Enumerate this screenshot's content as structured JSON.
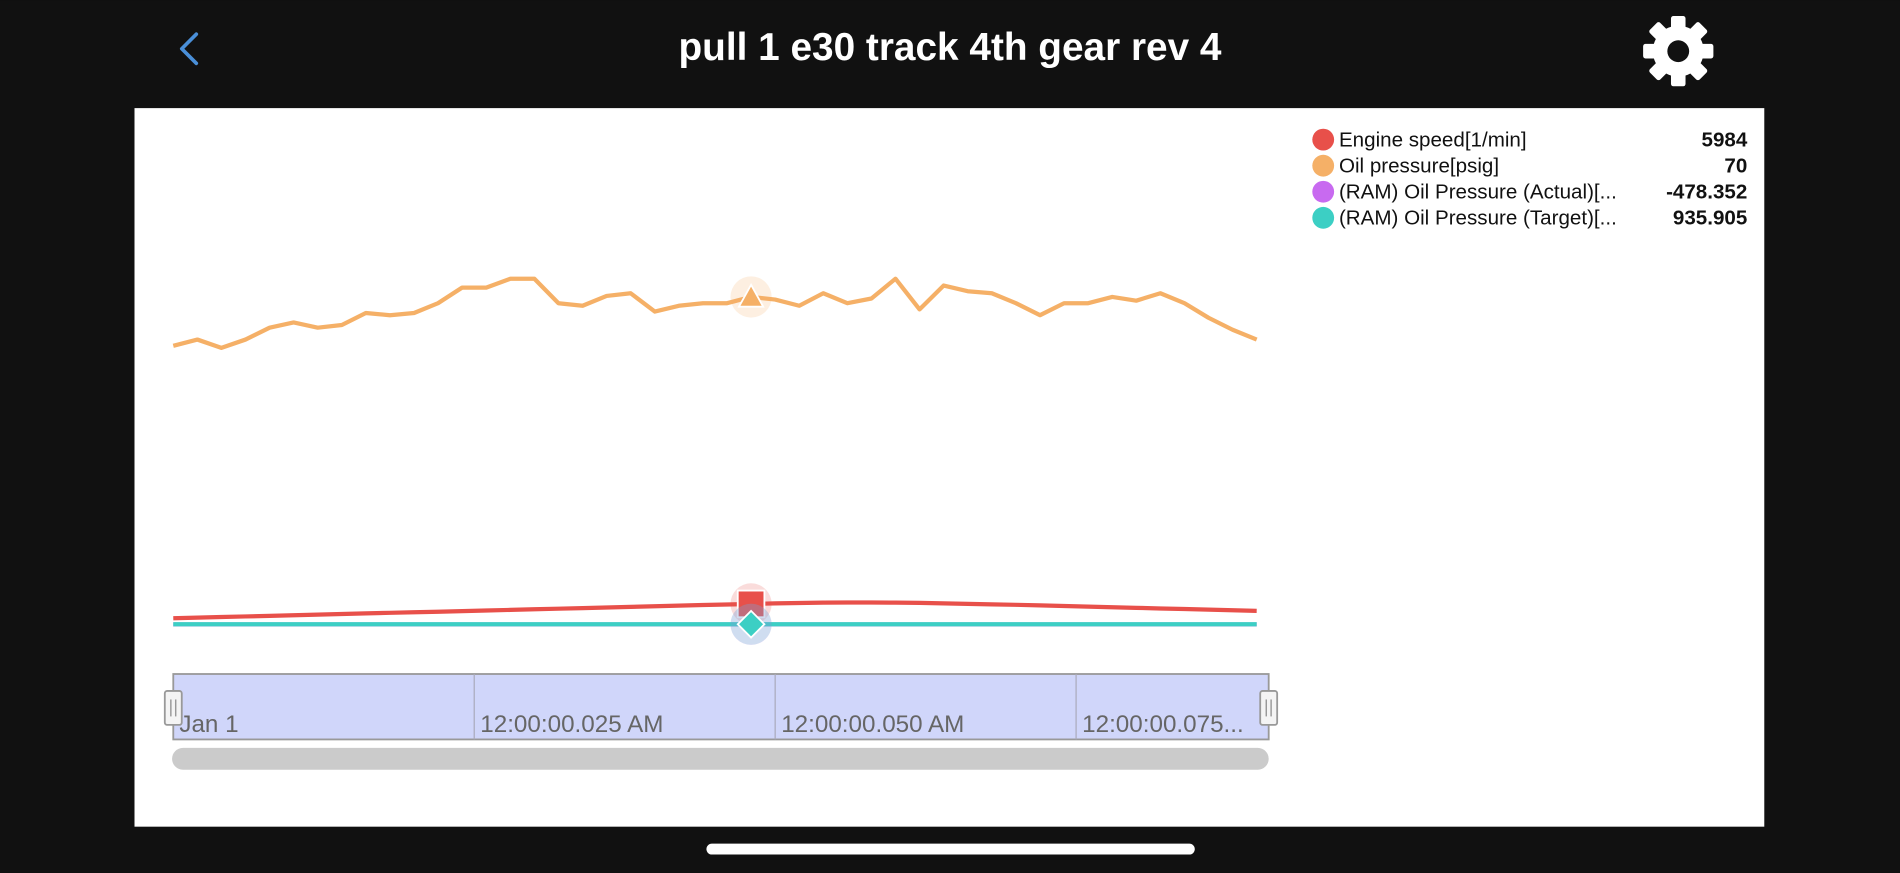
{
  "header": {
    "title": "pull 1 e30 track 4th gear rev 4"
  },
  "chart_data": {
    "type": "line",
    "x": [
      0,
      2,
      4,
      6,
      8,
      10,
      12,
      14,
      16,
      18,
      20,
      22,
      24,
      26,
      28,
      30,
      32,
      34,
      36,
      38,
      40,
      42,
      44,
      46,
      48,
      50,
      52,
      54,
      56,
      58,
      60,
      62,
      64,
      66,
      68,
      70,
      72,
      74,
      76,
      78,
      80,
      82,
      84,
      86,
      88,
      90
    ],
    "xlim": [
      0,
      91
    ],
    "xticks": [
      {
        "value": 0,
        "label": "Jan 1"
      },
      {
        "value": 25,
        "label": "12:00:00.025 AM"
      },
      {
        "value": 50,
        "label": "12:00:00.050 AM"
      },
      {
        "value": 75,
        "label": "12:00:00.075..."
      }
    ],
    "cursor_x": 48,
    "series": [
      {
        "name": "Engine speed[1/min]",
        "color": "#e8504a",
        "cursor_value": 5984,
        "marker": "square",
        "ylim": [
          0,
          61000
        ],
        "values": [
          4270,
          4340,
          4410,
          4480,
          4550,
          4620,
          4690,
          4760,
          4830,
          4900,
          4970,
          5040,
          5110,
          5180,
          5250,
          5320,
          5390,
          5460,
          5530,
          5600,
          5670,
          5740,
          5810,
          5880,
          5950,
          6010,
          6060,
          6100,
          6110,
          6110,
          6100,
          6070,
          6020,
          5960,
          5900,
          5840,
          5770,
          5700,
          5630,
          5560,
          5490,
          5420,
          5350,
          5280,
          5210,
          5140
        ]
      },
      {
        "name": "Oil pressure[psig]",
        "color": "#f5b067",
        "cursor_value": 70,
        "marker": "triangle",
        "ylim": [
          0,
          100
        ],
        "values": [
          59.4,
          60.6,
          59.0,
          60.6,
          62.9,
          63.9,
          62.9,
          63.4,
          65.7,
          65.3,
          65.7,
          67.6,
          70.6,
          70.6,
          72.3,
          72.3,
          67.6,
          67.1,
          69.0,
          69.5,
          66.0,
          67.1,
          67.6,
          67.6,
          68.8,
          68.3,
          67.1,
          69.5,
          67.6,
          68.5,
          72.3,
          66.4,
          71.0,
          69.9,
          69.5,
          67.6,
          65.3,
          67.6,
          67.6,
          68.8,
          68.1,
          69.5,
          67.6,
          64.8,
          62.5,
          60.6
        ]
      },
      {
        "name": "(RAM) Oil Pressure (Actual)[...",
        "color": "#c86af0",
        "cursor_value": -478.352,
        "marker": "circle",
        "ylim": [
          -1100,
          9600
        ],
        "values": [
          -478,
          -478,
          -478,
          -478,
          -478,
          -478,
          -478,
          -478,
          -478,
          -478,
          -478,
          -478,
          -478,
          -478,
          -478,
          -478,
          -478,
          -478,
          -478,
          -478,
          -478,
          -478,
          -478,
          -478,
          -478,
          -478,
          -478,
          -478,
          -478,
          -478,
          -478,
          -478,
          -478,
          -478,
          -478,
          -478,
          -478,
          -478,
          -478,
          -478,
          -478,
          -478,
          -478,
          -478,
          -478,
          -478
        ]
      },
      {
        "name": "(RAM) Oil Pressure (Target)[...",
        "color": "#3ccfc4",
        "cursor_value": 935.905,
        "marker": "diamond",
        "ylim": [
          0,
          16000
        ],
        "values": [
          936,
          936,
          936,
          936,
          936,
          936,
          936,
          936,
          936,
          936,
          936,
          936,
          936,
          936,
          936,
          936,
          936,
          936,
          936,
          936,
          936,
          936,
          936,
          936,
          936,
          936,
          936,
          936,
          936,
          936,
          936,
          936,
          936,
          936,
          936,
          936,
          936,
          936,
          936,
          936,
          936,
          936,
          936,
          936,
          936,
          936
        ]
      }
    ]
  }
}
